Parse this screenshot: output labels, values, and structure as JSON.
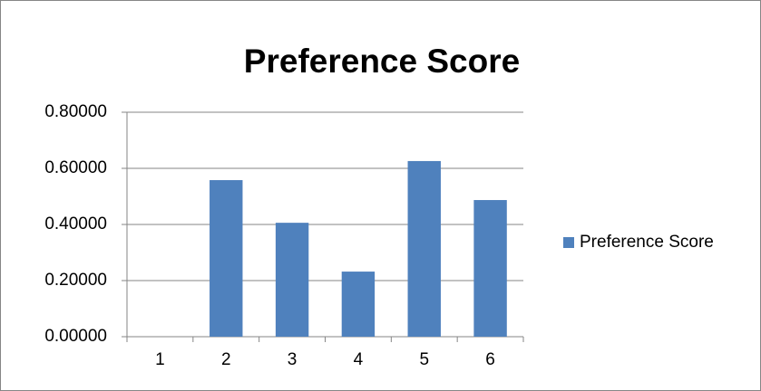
{
  "chart_data": {
    "type": "bar",
    "title": "Preference Score",
    "categories": [
      "1",
      "2",
      "3",
      "4",
      "5",
      "6"
    ],
    "series": [
      {
        "name": "Preference Score",
        "color": "#4f81bd",
        "values": [
          0,
          0.558,
          0.406,
          0.232,
          0.626,
          0.487
        ]
      }
    ],
    "ylim": [
      0,
      0.8
    ],
    "yticks": [
      {
        "value": 0,
        "label": "0.00000"
      },
      {
        "value": 0.2,
        "label": "0.20000"
      },
      {
        "value": 0.4,
        "label": "0.40000"
      },
      {
        "value": 0.6,
        "label": "0.60000"
      },
      {
        "value": 0.8,
        "label": "0.80000"
      }
    ],
    "grid": true,
    "legend": "right"
  }
}
